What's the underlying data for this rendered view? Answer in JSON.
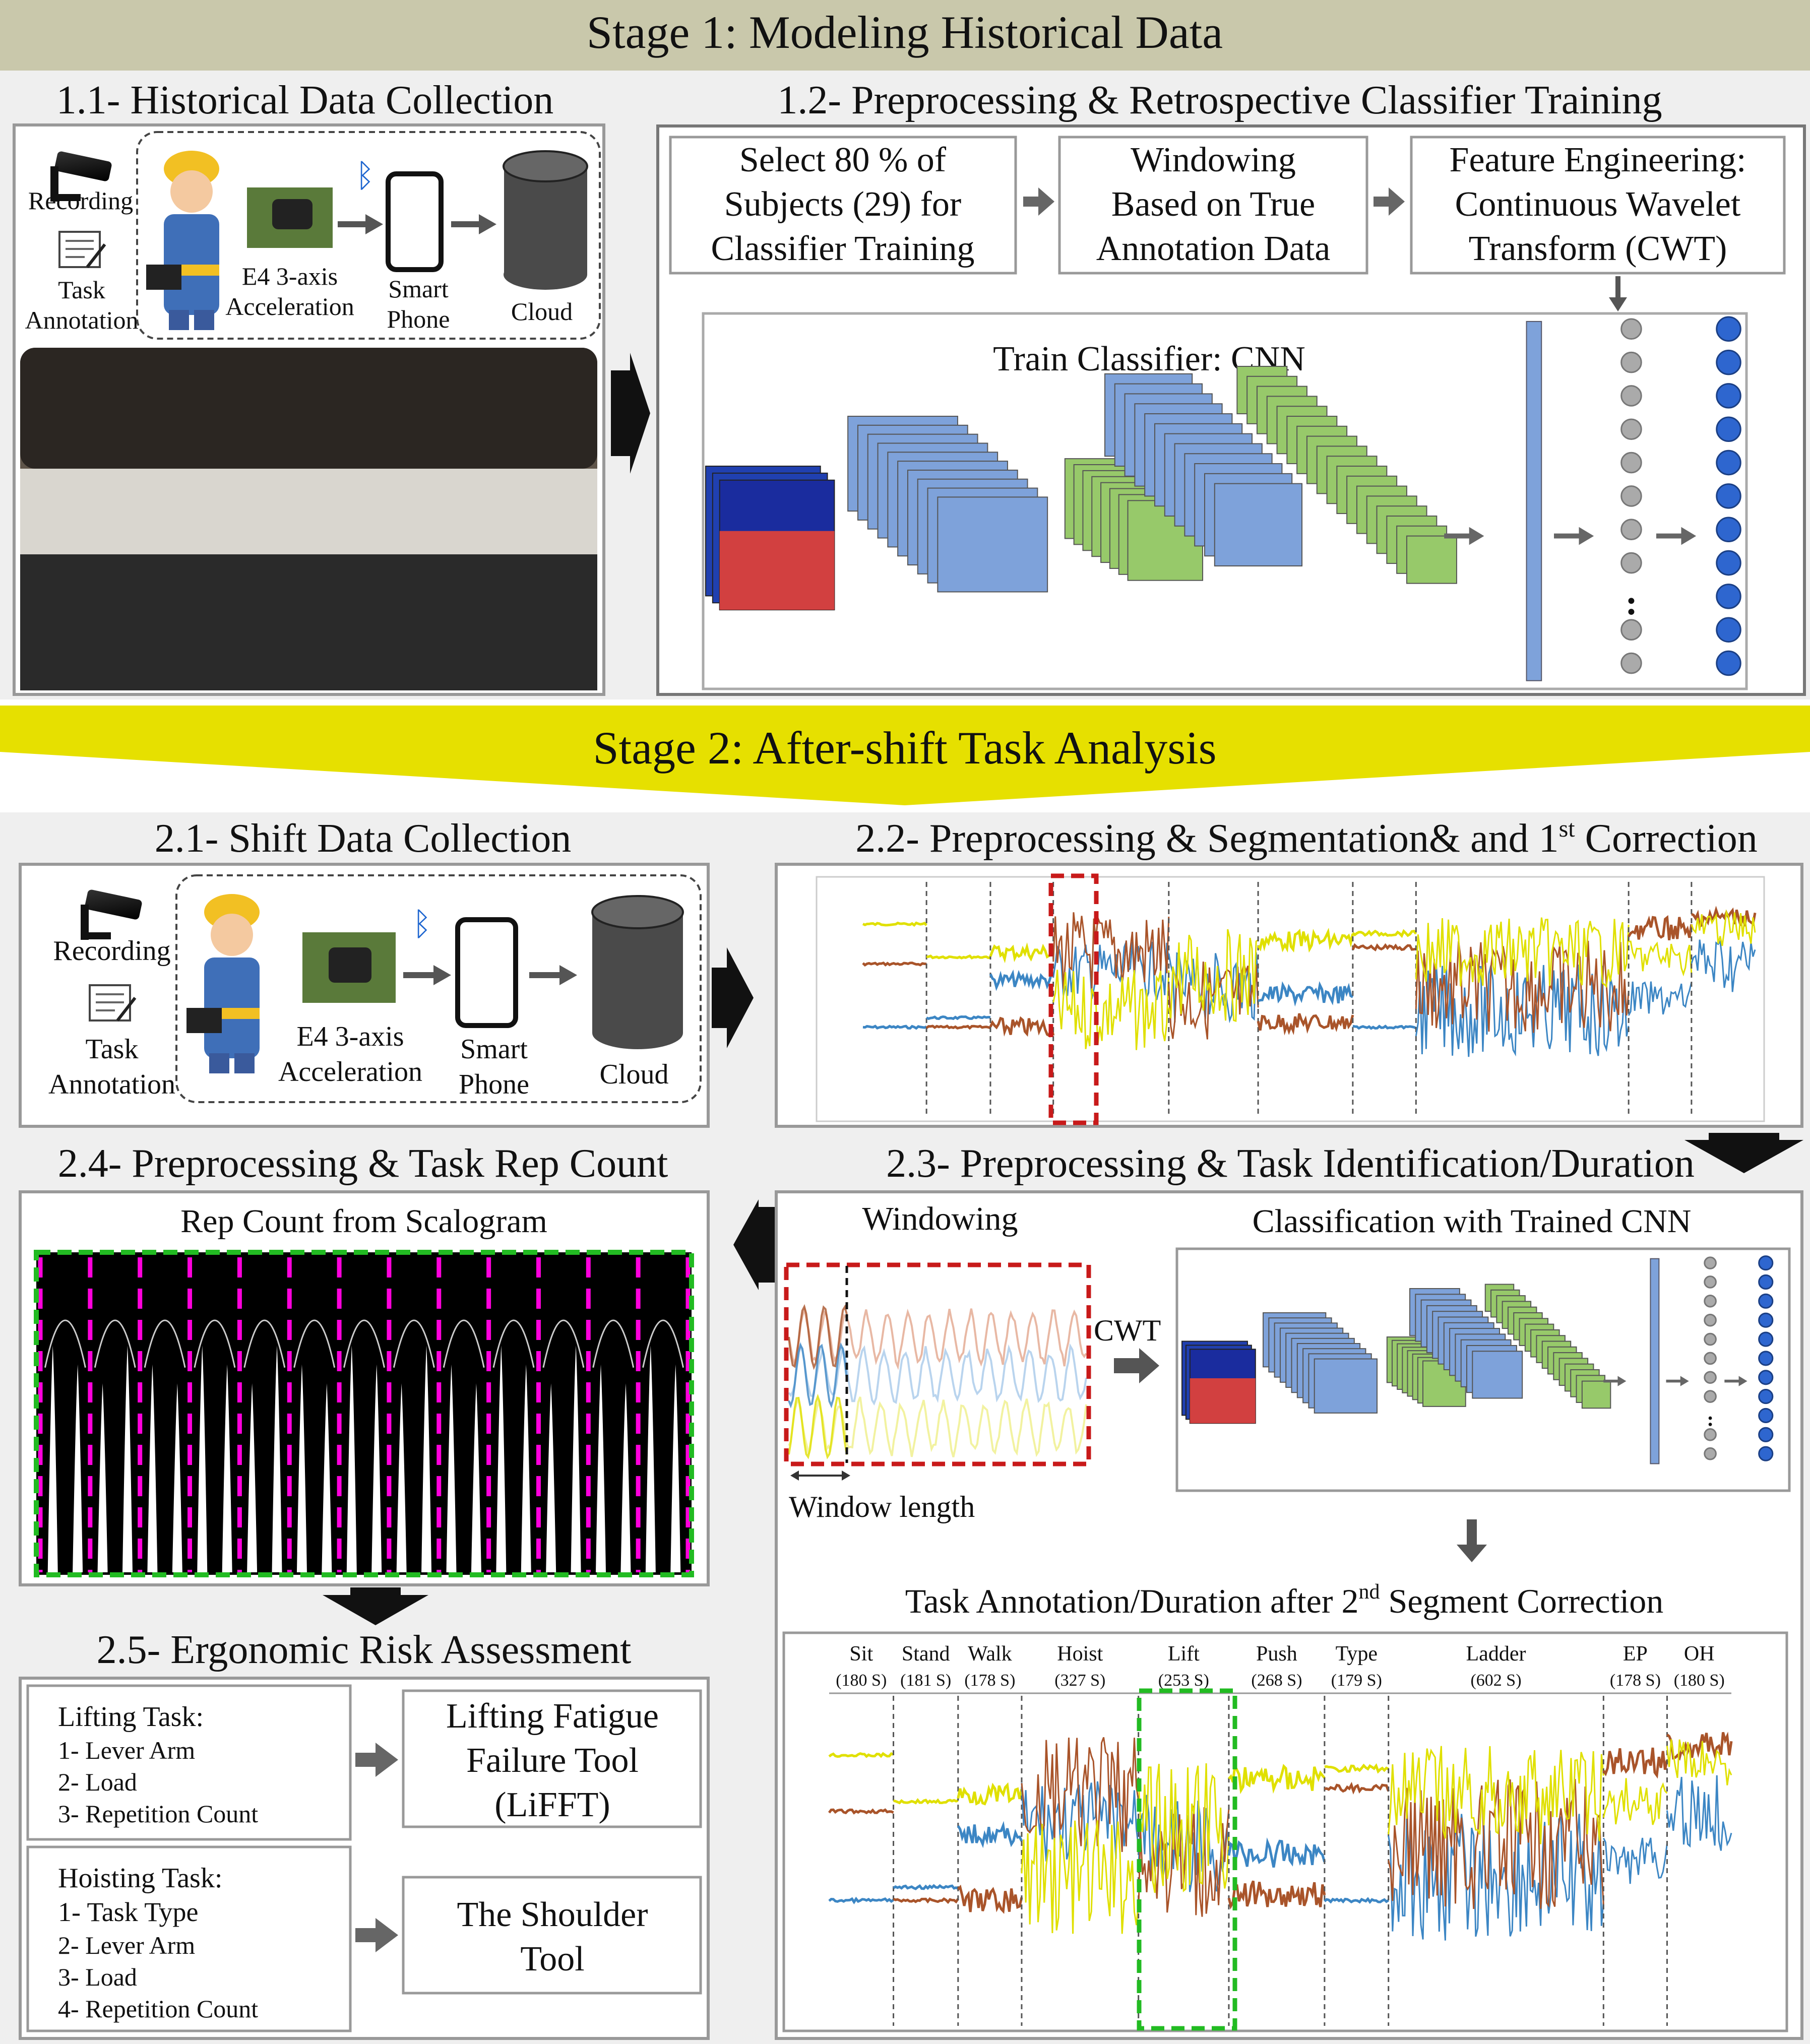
{
  "stage1": {
    "title": "Stage 1: Modeling Historical Data",
    "s11": {
      "title": "1.1- Historical Data Collection",
      "recording": "Recording",
      "task_annotation": [
        "Task",
        "Annotation"
      ],
      "sensor": [
        "E4 3-axis",
        "Acceleration"
      ],
      "smartphone": [
        "Smart",
        "Phone"
      ],
      "cloud": "Cloud"
    },
    "s12": {
      "title": "1.2- Preprocessing & Retrospective Classifier Training",
      "box1": [
        "Select 80 % of",
        "Subjects (29) for",
        "Classifier Training"
      ],
      "box2": [
        "Windowing",
        "Based on True",
        "Annotation Data"
      ],
      "box3": [
        "Feature Engineering:",
        "Continuous Wavelet",
        "Transform (CWT)"
      ],
      "cnn_label": "Train Classifier: CNN"
    }
  },
  "stage2": {
    "title": "Stage 2: After-shift Task Analysis",
    "s21": {
      "title": "2.1- Shift Data Collection",
      "recording": "Recording",
      "task_annotation": [
        "Task",
        "Annotation"
      ],
      "sensor": [
        "E4 3-axis",
        "Acceleration"
      ],
      "smartphone": [
        "Smart",
        "Phone"
      ],
      "cloud": "Cloud"
    },
    "s22": {
      "title_main": "2.2- Preprocessing & Segmentation& and 1",
      "title_sup": "st",
      "title_end": " Correction"
    },
    "s23": {
      "title": "2.3- Preprocessing & Task Identification/Duration",
      "windowing": "Windowing",
      "classification": "Classification with Trained CNN",
      "cwt": "CWT",
      "window_length": "Window length",
      "annotation_main": "Task Annotation/Duration after 2",
      "annotation_sup": "nd",
      "annotation_end": " Segment Correction",
      "tasks": [
        {
          "name": "Sit",
          "dur": "(180 S)"
        },
        {
          "name": "Stand",
          "dur": "(181 S)"
        },
        {
          "name": "Walk",
          "dur": "(178 S)"
        },
        {
          "name": "Hoist",
          "dur": "(327 S)"
        },
        {
          "name": "Lift",
          "dur": "(253 S)"
        },
        {
          "name": "Push",
          "dur": "(268 S)"
        },
        {
          "name": "Type",
          "dur": "(179 S)"
        },
        {
          "name": "Ladder",
          "dur": "(602 S)"
        },
        {
          "name": "EP",
          "dur": "(178 S)"
        },
        {
          "name": "OH",
          "dur": "(180 S)"
        }
      ]
    },
    "s24": {
      "title": "2.4- Preprocessing & Task Rep Count",
      "scalogram_label": "Rep Count from Scalogram"
    },
    "s25": {
      "title": "2.5- Ergonomic Risk Assessment",
      "lifting_header": "Lifting Task:",
      "lifting_items": [
        "1- Lever Arm",
        "2- Load",
        "3- Repetition Count"
      ],
      "lifft": [
        "Lifting Fatigue",
        "Failure Tool",
        "(LiFFT)"
      ],
      "hoisting_header": "Hoisting Task:",
      "hoisting_items": [
        "1- Task Type",
        "2- Lever Arm",
        "3- Load",
        "4- Repetition Count"
      ],
      "shoulder": [
        "The Shoulder",
        "Tool"
      ]
    }
  },
  "colors": {
    "stage1_bar": "#c9c8ab",
    "stage2_bar": "#e6e000",
    "panel_bg": "#efefef",
    "cnn_blue": "#7ea2da",
    "cnn_green": "#97c96a",
    "signal_yellow": "#e0e000",
    "signal_brown": "#a9542a",
    "signal_blue": "#3c86c4",
    "highlight_red": "#c81a1a",
    "highlight_green": "#22bb22",
    "rep_magenta": "#ff00dd"
  }
}
